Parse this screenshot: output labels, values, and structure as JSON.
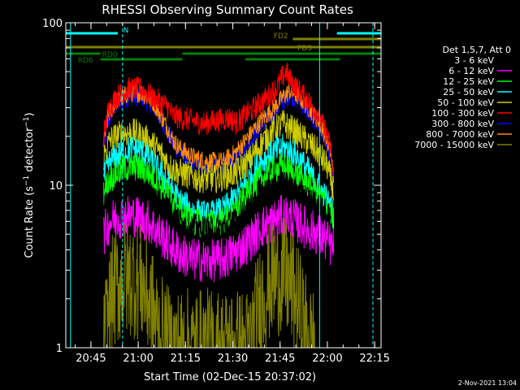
{
  "chart_data": {
    "type": "line",
    "title": "RHESSI Observing Summary Count Rates",
    "xlabel": "Start Time (02-Dec-15 20:37:02)",
    "ylabel": "Count Rate (s⁻¹ detector⁻¹)",
    "ylabel_main": "Count Rate (s",
    "ylabel_mid": " detector",
    "ylabel_end": ")",
    "yscale": "log",
    "xlim_minutes": [
      0,
      100
    ],
    "ylim": [
      1,
      100
    ],
    "x_ticks": [
      {
        "label": "20:45",
        "minute": 7.97
      },
      {
        "label": "21:00",
        "minute": 22.97
      },
      {
        "label": "21:15",
        "minute": 37.97
      },
      {
        "label": "21:30",
        "minute": 52.97
      },
      {
        "label": "21:45",
        "minute": 67.97
      },
      {
        "label": "22:00",
        "minute": 82.97
      },
      {
        "label": "22:15",
        "minute": 97.97
      }
    ],
    "y_ticks": [
      {
        "label": "1",
        "value": 1
      },
      {
        "label": "10",
        "value": 10
      },
      {
        "label": "100",
        "value": 100
      }
    ],
    "legend_header": "Det 1,5,7, Att 0",
    "legend_position": "right",
    "series": [
      {
        "name": "3 - 6 keV",
        "color": "#000000"
      },
      {
        "name": "6 - 12 keV",
        "color": "#ff00ff"
      },
      {
        "name": "12 - 25 keV",
        "color": "#00ff00"
      },
      {
        "name": "25 - 50 keV",
        "color": "#00ffff"
      },
      {
        "name": "50 - 100 keV",
        "color": "#cccc00"
      },
      {
        "name": "100 - 300 keV",
        "color": "#ff0000"
      },
      {
        "name": "300 - 800 keV",
        "color": "#0000ff"
      },
      {
        "name": "800 - 7000 keV",
        "color": "#ff8c00"
      },
      {
        "name": "7000 - 15000 keV",
        "color": "#808000"
      }
    ],
    "profiles": [
      {
        "series": "300 - 800 keV",
        "noise": 0.04,
        "points": [
          [
            12,
            16
          ],
          [
            13.5,
            25
          ],
          [
            16,
            31
          ],
          [
            20,
            35
          ],
          [
            24,
            35
          ],
          [
            28,
            30
          ],
          [
            32,
            22
          ],
          [
            34,
            18
          ],
          [
            36,
            16
          ],
          [
            40,
            14
          ],
          [
            45,
            13
          ],
          [
            50,
            13
          ],
          [
            54,
            15
          ],
          [
            58,
            18
          ],
          [
            62,
            23
          ],
          [
            66,
            28
          ],
          [
            69,
            33
          ],
          [
            71,
            36
          ],
          [
            74,
            33
          ],
          [
            77,
            28
          ],
          [
            80,
            23
          ],
          [
            82,
            20
          ],
          [
            84,
            15
          ],
          [
            85,
            8
          ]
        ]
      },
      {
        "series": "800 - 7000 keV",
        "noise": 0.04,
        "points": [
          [
            12,
            18
          ],
          [
            13.5,
            27
          ],
          [
            16,
            33
          ],
          [
            20,
            37
          ],
          [
            24,
            37
          ],
          [
            28,
            32
          ],
          [
            32,
            23
          ],
          [
            34,
            19
          ],
          [
            36,
            17
          ],
          [
            40,
            15
          ],
          [
            45,
            14
          ],
          [
            50,
            14
          ],
          [
            54,
            16
          ],
          [
            58,
            20
          ],
          [
            62,
            25
          ],
          [
            66,
            30
          ],
          [
            69,
            35
          ],
          [
            71,
            38
          ],
          [
            74,
            35
          ],
          [
            77,
            30
          ],
          [
            80,
            25
          ],
          [
            82,
            21
          ],
          [
            84,
            16
          ],
          [
            85,
            11
          ]
        ]
      },
      {
        "series": "100 - 300 keV",
        "noise": 0.05,
        "points": [
          [
            12,
            20
          ],
          [
            13.5,
            29
          ],
          [
            16,
            35
          ],
          [
            20,
            39
          ],
          [
            24,
            39
          ],
          [
            28,
            34
          ],
          [
            32,
            31
          ],
          [
            34,
            27
          ],
          [
            36,
            26
          ],
          [
            40,
            25
          ],
          [
            44,
            24
          ],
          [
            48,
            25
          ],
          [
            52,
            26
          ],
          [
            54,
            24
          ],
          [
            56,
            26
          ],
          [
            60,
            30
          ],
          [
            64,
            35
          ],
          [
            67,
            40
          ],
          [
            69,
            47
          ],
          [
            70,
            50
          ],
          [
            71,
            45
          ],
          [
            74,
            38
          ],
          [
            77,
            33
          ],
          [
            80,
            27
          ],
          [
            82,
            22
          ],
          [
            84,
            17
          ],
          [
            85,
            10
          ]
        ]
      },
      {
        "series": "50 - 100 keV",
        "noise": 0.06,
        "points": [
          [
            12,
            15
          ],
          [
            14,
            19
          ],
          [
            18,
            21
          ],
          [
            22,
            21
          ],
          [
            26,
            19
          ],
          [
            30,
            16
          ],
          [
            33,
            13
          ],
          [
            36,
            12
          ],
          [
            42,
            11
          ],
          [
            48,
            11
          ],
          [
            54,
            12
          ],
          [
            58,
            14
          ],
          [
            62,
            18
          ],
          [
            66,
            22
          ],
          [
            69,
            24
          ],
          [
            72,
            22
          ],
          [
            76,
            19
          ],
          [
            80,
            16
          ],
          [
            83,
            13
          ],
          [
            85,
            9
          ]
        ]
      },
      {
        "series": "25 - 50 keV",
        "noise": 0.06,
        "points": [
          [
            12,
            11
          ],
          [
            14,
            14
          ],
          [
            18,
            16
          ],
          [
            22,
            17
          ],
          [
            26,
            15
          ],
          [
            30,
            12
          ],
          [
            33,
            10
          ],
          [
            36,
            8
          ],
          [
            40,
            7
          ],
          [
            45,
            6.5
          ],
          [
            50,
            7
          ],
          [
            54,
            8.5
          ],
          [
            58,
            11
          ],
          [
            62,
            14
          ],
          [
            66,
            16
          ],
          [
            69,
            17
          ],
          [
            72,
            16
          ],
          [
            76,
            13
          ],
          [
            80,
            10
          ],
          [
            83,
            8
          ],
          [
            85,
            6.5
          ]
        ]
      },
      {
        "series": "12 - 25 keV",
        "noise": 0.06,
        "points": [
          [
            12,
            9
          ],
          [
            14,
            11
          ],
          [
            18,
            12.5
          ],
          [
            22,
            13
          ],
          [
            26,
            12
          ],
          [
            30,
            10
          ],
          [
            33,
            8.5
          ],
          [
            36,
            7
          ],
          [
            40,
            6
          ],
          [
            45,
            5.8
          ],
          [
            50,
            6
          ],
          [
            54,
            7
          ],
          [
            58,
            9
          ],
          [
            62,
            11
          ],
          [
            66,
            12.5
          ],
          [
            69,
            13
          ],
          [
            72,
            12
          ],
          [
            76,
            10.5
          ],
          [
            80,
            9
          ],
          [
            83,
            7.5
          ],
          [
            85,
            6
          ]
        ]
      },
      {
        "series": "3 - 6 keV",
        "noise": 0.06,
        "points": [
          [
            12,
            7
          ],
          [
            14,
            8
          ],
          [
            18,
            9
          ],
          [
            22,
            9.5
          ],
          [
            26,
            9
          ],
          [
            30,
            8
          ],
          [
            33,
            7
          ],
          [
            36,
            6
          ],
          [
            40,
            5.5
          ],
          [
            45,
            5.3
          ],
          [
            50,
            5.5
          ],
          [
            54,
            6
          ],
          [
            58,
            7
          ],
          [
            62,
            8.5
          ],
          [
            66,
            9.5
          ],
          [
            69,
            10
          ],
          [
            72,
            9.5
          ],
          [
            76,
            8.5
          ],
          [
            80,
            7.5
          ],
          [
            83,
            6.5
          ],
          [
            85,
            5.5
          ]
        ]
      },
      {
        "series": "6 - 12 keV",
        "noise": 0.09,
        "points": [
          [
            12,
            5
          ],
          [
            14,
            6
          ],
          [
            18,
            6.5
          ],
          [
            22,
            6.5
          ],
          [
            26,
            6
          ],
          [
            30,
            5
          ],
          [
            33,
            4.3
          ],
          [
            36,
            3.8
          ],
          [
            40,
            3.5
          ],
          [
            45,
            3.4
          ],
          [
            50,
            3.5
          ],
          [
            54,
            3.9
          ],
          [
            58,
            4.5
          ],
          [
            62,
            5.5
          ],
          [
            66,
            6
          ],
          [
            69,
            6.5
          ],
          [
            72,
            6.2
          ],
          [
            76,
            5.5
          ],
          [
            80,
            5
          ],
          [
            83,
            4.5
          ],
          [
            85,
            4
          ]
        ]
      },
      {
        "series": "7000 - 15000 keV",
        "noise": 0.25,
        "points": [
          [
            12,
            1.0
          ],
          [
            13,
            1.4
          ],
          [
            15,
            2.2
          ],
          [
            18,
            2.6
          ],
          [
            21,
            2.7
          ],
          [
            24,
            2.5
          ],
          [
            27,
            1.8
          ],
          [
            30,
            1.2
          ],
          [
            33,
            1.0
          ],
          [
            58,
            1.0
          ],
          [
            60,
            1.4
          ],
          [
            62,
            2.0
          ],
          [
            65,
            2.6
          ],
          [
            68,
            2.8
          ],
          [
            71,
            2.5
          ],
          [
            73,
            2.0
          ],
          [
            75,
            1.5
          ],
          [
            77,
            1.1
          ],
          [
            79,
            1.0
          ]
        ]
      }
    ],
    "status_bars": [
      {
        "label": "N",
        "color": "#00ffff",
        "row": 1,
        "segments": [
          [
            0,
            16.5
          ],
          [
            86,
            100
          ]
        ]
      },
      {
        "label": "FD2",
        "color": "#808000",
        "row": 2,
        "segments": [
          [
            72,
            100
          ]
        ]
      },
      {
        "label": "FD3",
        "color": "#808000",
        "row": 3,
        "segments": [
          [
            0,
            100
          ]
        ]
      },
      {
        "label": "RD0",
        "color": "#008000",
        "row": 4,
        "segments": [
          [
            0,
            11
          ],
          [
            37,
            57
          ],
          [
            57,
            87
          ],
          [
            87,
            100
          ]
        ]
      },
      {
        "label": "RD6",
        "color": "#008000",
        "row": 5,
        "segments": [
          [
            11,
            37
          ],
          [
            57,
            87
          ]
        ]
      }
    ],
    "vertical_markers": [
      {
        "minute": 1.5,
        "color": "#00ffff",
        "style": "solid"
      },
      {
        "minute": 18,
        "color": "#00ffff",
        "style": "dashed"
      },
      {
        "minute": 80.5,
        "color": "#00ffff",
        "style": "solid"
      },
      {
        "minute": 101.5,
        "color": "#00ffff",
        "style": "dashed"
      }
    ]
  },
  "footer": {
    "timestamp": "2-Nov-2021 13:04"
  }
}
